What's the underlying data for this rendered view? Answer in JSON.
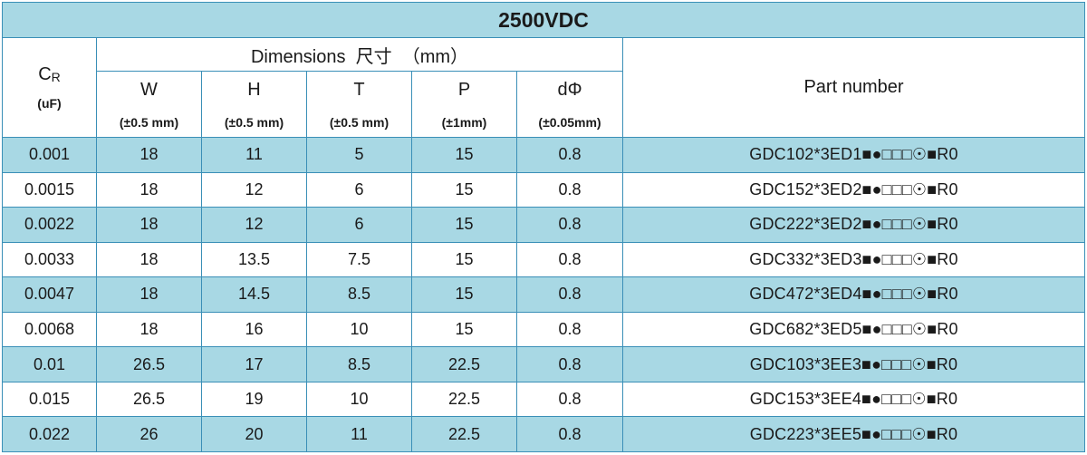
{
  "title": "2500VDC",
  "header": {
    "cr_main": "C",
    "cr_sub": "R",
    "cr_unit": "(uF)",
    "dimensions": "Dimensions  尺寸  （mm）",
    "part_number": "Part number",
    "columns": [
      {
        "label": "W",
        "tolerance": "(±0.5 mm)"
      },
      {
        "label": "H",
        "tolerance": "(±0.5 mm)"
      },
      {
        "label": "T",
        "tolerance": "(±0.5 mm)"
      },
      {
        "label": "P",
        "tolerance": "(±1mm)"
      },
      {
        "label": "dΦ",
        "tolerance": "(±0.05mm)"
      }
    ]
  },
  "rows": [
    {
      "cr": "0.001",
      "w": "18",
      "h": "11",
      "t": "5",
      "p": "15",
      "d": "0.8",
      "part": "GDC102*3ED1■●□□□☉■R0"
    },
    {
      "cr": "0.0015",
      "w": "18",
      "h": "12",
      "t": "6",
      "p": "15",
      "d": "0.8",
      "part": "GDC152*3ED2■●□□□☉■R0"
    },
    {
      "cr": "0.0022",
      "w": "18",
      "h": "12",
      "t": "6",
      "p": "15",
      "d": "0.8",
      "part": "GDC222*3ED2■●□□□☉■R0"
    },
    {
      "cr": "0.0033",
      "w": "18",
      "h": "13.5",
      "t": "7.5",
      "p": "15",
      "d": "0.8",
      "part": "GDC332*3ED3■●□□□☉■R0"
    },
    {
      "cr": "0.0047",
      "w": "18",
      "h": "14.5",
      "t": "8.5",
      "p": "15",
      "d": "0.8",
      "part": "GDC472*3ED4■●□□□☉■R0"
    },
    {
      "cr": "0.0068",
      "w": "18",
      "h": "16",
      "t": "10",
      "p": "15",
      "d": "0.8",
      "part": "GDC682*3ED5■●□□□☉■R0"
    },
    {
      "cr": "0.01",
      "w": "26.5",
      "h": "17",
      "t": "8.5",
      "p": "22.5",
      "d": "0.8",
      "part": "GDC103*3EE3■●□□□☉■R0"
    },
    {
      "cr": "0.015",
      "w": "26.5",
      "h": "19",
      "t": "10",
      "p": "22.5",
      "d": "0.8",
      "part": "GDC153*3EE4■●□□□☉■R0"
    },
    {
      "cr": "0.022",
      "w": "26",
      "h": "20",
      "t": "11",
      "p": "22.5",
      "d": "0.8",
      "part": "GDC223*3EE5■●□□□☉■R0"
    }
  ],
  "colors": {
    "header_fill": "#a8d8e4",
    "border": "#3a8fb7"
  }
}
